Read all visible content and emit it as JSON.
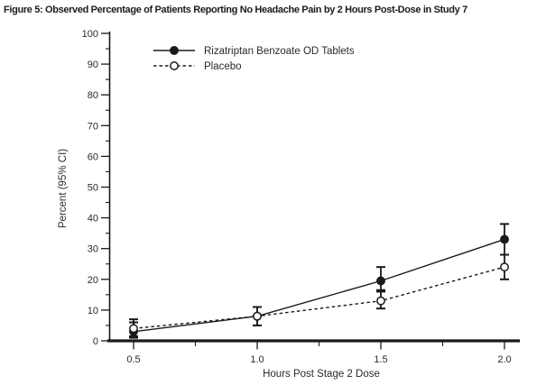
{
  "figure": {
    "title": "Figure 5: Observed Percentage of Patients Reporting No Headache Pain by 2 Hours Post-Dose in Study 7"
  },
  "chart_data": {
    "type": "line",
    "title": "Figure 5: Observed Percentage of Patients Reporting No Headache Pain by 2 Hours Post-Dose in Study 7",
    "xlabel": "Hours Post Stage 2 Dose",
    "ylabel": "Percent (95% CI)",
    "x": [
      0.5,
      1.0,
      1.5,
      2.0
    ],
    "x_tick_labels": [
      "0.5",
      "1.0",
      "1.5",
      "2.0"
    ],
    "x_minor_ticks": [
      0.75,
      1.25,
      1.75
    ],
    "ylim": [
      0,
      100
    ],
    "y_major_ticks": [
      0,
      10,
      20,
      30,
      40,
      50,
      60,
      70,
      80,
      90,
      100
    ],
    "y_minor_step": 5,
    "grid": false,
    "legend_position": "top-left-inside",
    "series": [
      {
        "name": "Rizatriptan Benzoate OD Tablets",
        "marker": "filled-circle",
        "line_style": "solid",
        "values": [
          3,
          8,
          19.5,
          33
        ],
        "ci_low": [
          1,
          5,
          16,
          28
        ],
        "ci_high": [
          6,
          11,
          24,
          38
        ]
      },
      {
        "name": "Placebo",
        "marker": "open-circle",
        "line_style": "dashed",
        "values": [
          4,
          8,
          13,
          24
        ],
        "ci_low": [
          1.5,
          5,
          10.5,
          20
        ],
        "ci_high": [
          7,
          11,
          16.5,
          28
        ]
      }
    ],
    "colors": {
      "line": "#1a1a1a",
      "text": "#2a2a2a",
      "marker_fill_open": "#ffffff"
    }
  }
}
